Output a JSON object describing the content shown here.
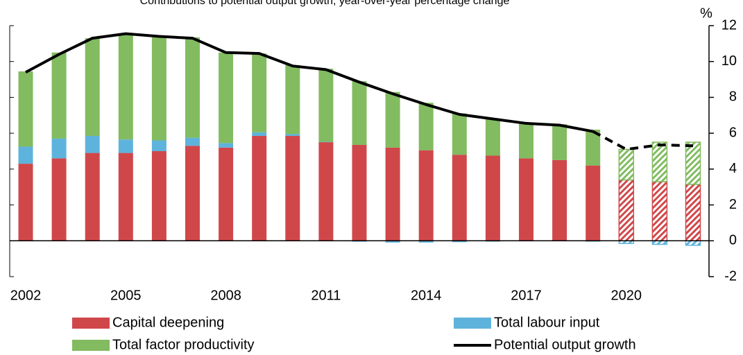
{
  "chart_data": {
    "type": "stacked_bar_line",
    "title": "Contributions to potential output growth, year-over-year percentage change",
    "y_unit": "%",
    "categories": [
      "2002",
      null,
      null,
      "2005",
      null,
      null,
      "2008",
      null,
      null,
      "2011",
      null,
      null,
      "2014",
      null,
      null,
      "2017",
      null,
      null,
      "2020",
      null,
      null
    ],
    "projected": [
      false,
      false,
      false,
      false,
      false,
      false,
      false,
      false,
      false,
      false,
      false,
      false,
      false,
      false,
      false,
      false,
      false,
      false,
      true,
      true,
      true
    ],
    "series": [
      {
        "name": "Capital deepening",
        "color": "#d0474a",
        "values": [
          4.3,
          4.6,
          4.9,
          4.9,
          5.0,
          5.3,
          5.2,
          5.85,
          5.85,
          5.5,
          5.35,
          5.2,
          5.05,
          4.8,
          4.75,
          4.6,
          4.5,
          4.2,
          3.4,
          3.3,
          3.15
        ]
      },
      {
        "name": "Total labour input",
        "color": "#5eb3dc",
        "values": [
          0.95,
          1.1,
          0.95,
          0.75,
          0.6,
          0.45,
          0.25,
          0.2,
          0.1,
          0.02,
          -0.05,
          -0.1,
          -0.1,
          -0.08,
          -0.05,
          -0.03,
          -0.02,
          -0.05,
          -0.15,
          -0.2,
          -0.25
        ]
      },
      {
        "name": "Total factor productivity",
        "color": "#82bb60",
        "values": [
          4.2,
          4.8,
          5.45,
          5.85,
          5.75,
          5.6,
          5.05,
          4.4,
          3.85,
          4.08,
          3.55,
          3.1,
          2.65,
          2.3,
          2.05,
          2.0,
          2.0,
          2.0,
          1.7,
          2.2,
          2.35
        ]
      }
    ],
    "line": {
      "name": "Potential output growth",
      "color": "#000000",
      "values": [
        9.4,
        10.4,
        11.3,
        11.55,
        11.4,
        11.3,
        10.5,
        10.45,
        9.75,
        9.55,
        8.85,
        8.2,
        7.6,
        7.05,
        6.8,
        6.55,
        6.45,
        6.1,
        5.1,
        5.35,
        5.3
      ]
    },
    "ylim": [
      -2,
      12
    ],
    "yticks": [
      -2,
      0,
      2,
      4,
      6,
      8,
      10,
      12
    ]
  }
}
